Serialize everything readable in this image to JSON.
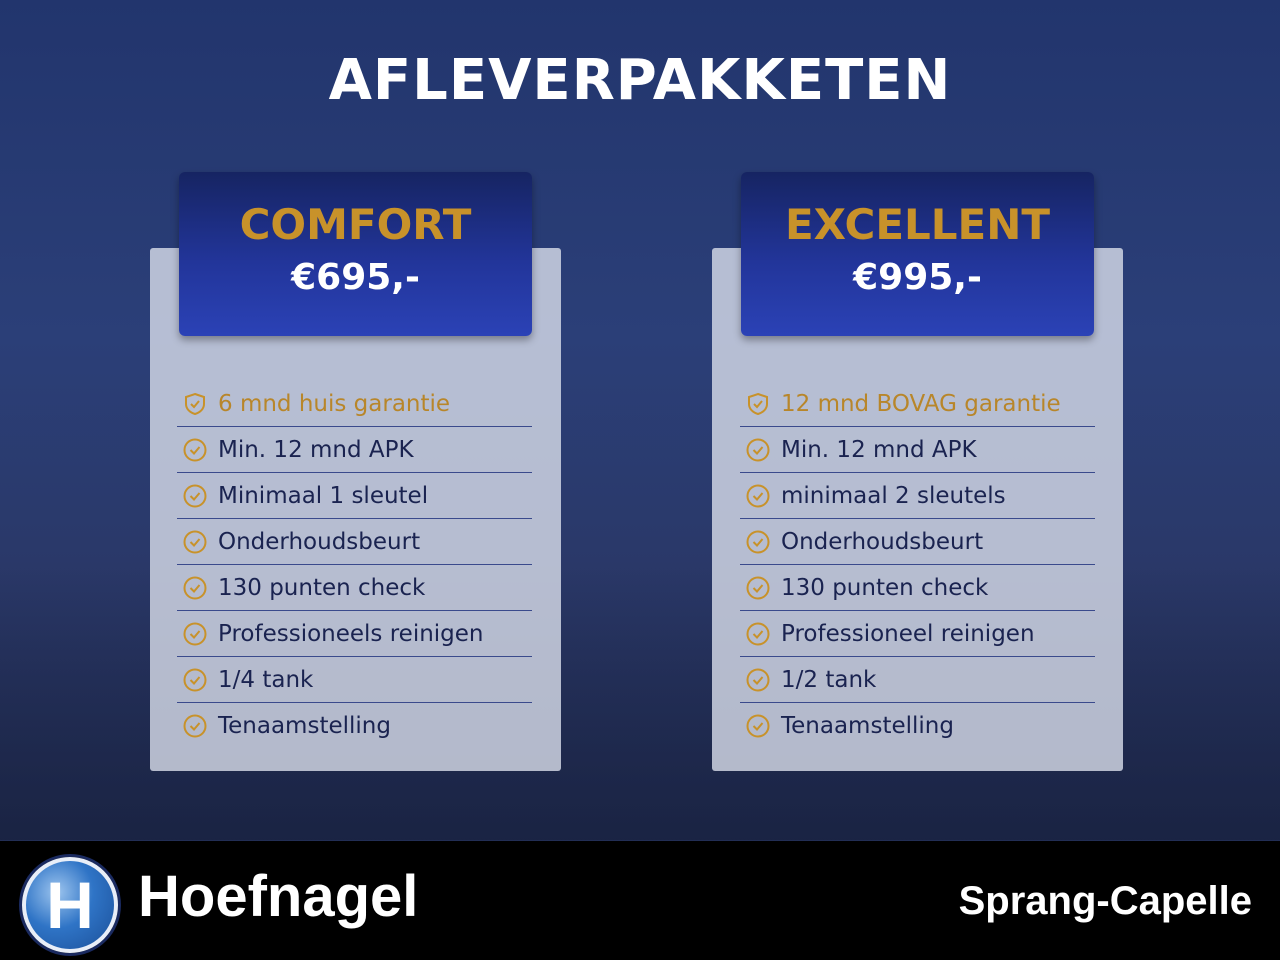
{
  "title": "AFLEVERPAKKETEN",
  "packages": [
    {
      "name": "COMFORT",
      "price": "€695,-",
      "items": [
        {
          "label": "6 mnd huis garantie",
          "icon": "shield-check-icon",
          "highlight": true
        },
        {
          "label": "Min. 12 mnd APK",
          "icon": "check-circle-icon"
        },
        {
          "label": "Minimaal 1 sleutel",
          "icon": "check-circle-icon"
        },
        {
          "label": "Onderhoudsbeurt",
          "icon": "check-circle-icon"
        },
        {
          "label": "130 punten check",
          "icon": "check-circle-icon"
        },
        {
          "label": "Professioneels reinigen",
          "icon": "check-circle-icon"
        },
        {
          "label": "1/4 tank",
          "icon": "check-circle-icon"
        },
        {
          "label": "Tenaamstelling",
          "icon": "check-circle-icon"
        }
      ]
    },
    {
      "name": "EXCELLENT",
      "price": "€995,-",
      "items": [
        {
          "label": "12 mnd BOVAG garantie",
          "icon": "shield-check-icon",
          "highlight": true
        },
        {
          "label": "Min. 12 mnd APK",
          "icon": "check-circle-icon"
        },
        {
          "label": "minimaal 2 sleutels",
          "icon": "check-circle-icon"
        },
        {
          "label": "Onderhoudsbeurt",
          "icon": "check-circle-icon"
        },
        {
          "label": "130 punten check",
          "icon": "check-circle-icon"
        },
        {
          "label": "Professioneel reinigen",
          "icon": "check-circle-icon"
        },
        {
          "label": "1/2 tank",
          "icon": "check-circle-icon"
        },
        {
          "label": "Tenaamstelling",
          "icon": "check-circle-icon"
        }
      ]
    }
  ],
  "footer": {
    "logo_letter": "H",
    "brand": "Hoefnagel",
    "location": "Sprang-Capelle"
  },
  "colors": {
    "gold": "#c8922a",
    "navy": "#22359a",
    "footer": "#000000"
  }
}
